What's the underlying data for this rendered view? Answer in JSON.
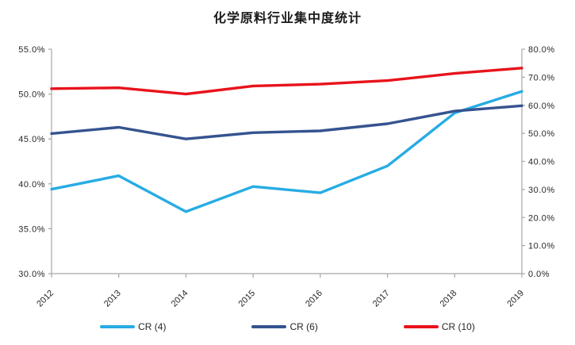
{
  "title": "化学原料行业集中度统计",
  "colors": {
    "background": "#FFFFFF",
    "axis_line": "#A6A6A6",
    "tick_label": "#262626",
    "title_text": "#1A1A1A",
    "cr4_line": "#27ACE3",
    "cr6_line": "#35538F",
    "cr10_line": "#E8131C"
  },
  "chart_data": {
    "type": "line",
    "title": "化学原料行业集中度统计",
    "categories": [
      "2012",
      "2013",
      "2014",
      "2015",
      "2016",
      "2017",
      "2018",
      "2019"
    ],
    "series": [
      {
        "name": "CR (4)",
        "color": "#27ACE3",
        "axis": "left",
        "values": [
          39.4,
          40.9,
          36.9,
          39.7,
          39.0,
          42.0,
          47.9,
          50.3
        ]
      },
      {
        "name": "CR (6)",
        "color": "#35538F",
        "axis": "left",
        "values": [
          45.6,
          46.3,
          45.0,
          45.7,
          45.9,
          46.7,
          48.1,
          48.7
        ]
      },
      {
        "name": "CR (10)",
        "color": "#E8131C",
        "axis": "left",
        "values": [
          50.6,
          50.7,
          50.0,
          50.9,
          51.1,
          51.5,
          52.3,
          52.9
        ]
      }
    ],
    "left_axis": {
      "min": 30,
      "max": 55,
      "step": 5,
      "tick_labels": [
        "55.0%",
        "50.0%",
        "45.0%",
        "40.0%",
        "35.0%",
        "30.0%"
      ]
    },
    "right_axis": {
      "min": 0,
      "max": 80,
      "step": 10,
      "tick_labels": [
        "80.0%",
        "70.0%",
        "60.0%",
        "50.0%",
        "40.0%",
        "30.0%",
        "20.0%",
        "10.0%",
        "0.0%"
      ]
    },
    "xlabel": "",
    "ylabel": "",
    "grid": false,
    "legend_position": "bottom",
    "x_label_rotation": -45
  }
}
